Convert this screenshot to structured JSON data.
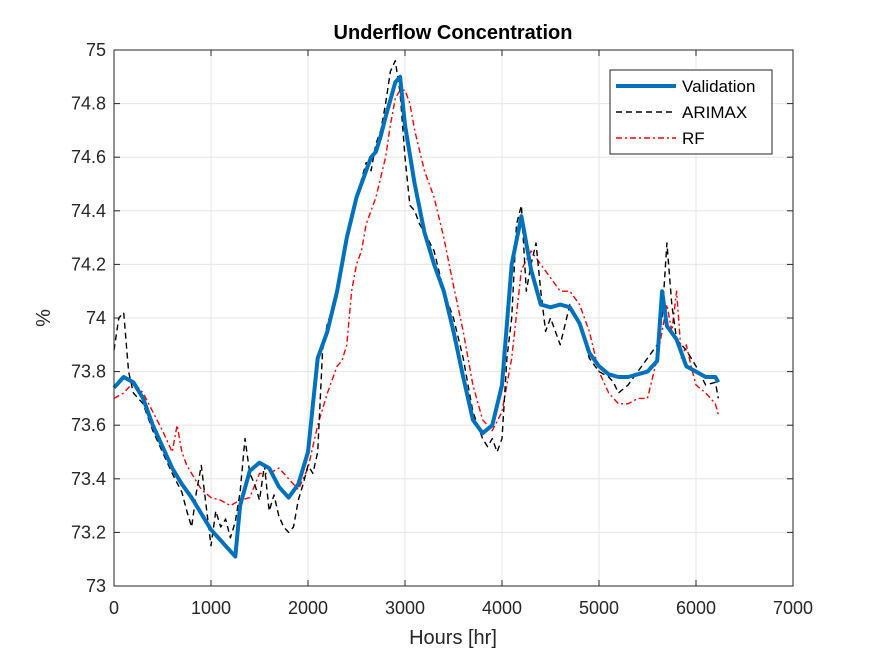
{
  "chart_data": {
    "type": "line",
    "title": "Underflow Concentration",
    "xlabel": "Hours [hr]",
    "ylabel": "%",
    "xlim": [
      0,
      7000
    ],
    "ylim": [
      73,
      75
    ],
    "xticks": [
      0,
      1000,
      2000,
      3000,
      4000,
      5000,
      6000,
      7000
    ],
    "yticks": [
      73,
      73.2,
      73.4,
      73.6,
      73.8,
      74,
      74.2,
      74.4,
      74.6,
      74.8,
      75
    ],
    "xtick_labels": [
      "0",
      "1000",
      "2000",
      "3000",
      "4000",
      "5000",
      "6000",
      "7000"
    ],
    "ytick_labels": [
      "73",
      "73.2",
      "73.4",
      "73.6",
      "73.8",
      "74",
      "74.2",
      "74.4",
      "74.6",
      "74.8",
      "75"
    ],
    "grid": true,
    "legend_position": "top-right",
    "series": [
      {
        "name": "Validation",
        "color": "#0072BD",
        "style": "solid-thick",
        "x": [
          0,
          100,
          200,
          300,
          400,
          500,
          600,
          700,
          800,
          900,
          1000,
          1100,
          1200,
          1250,
          1300,
          1400,
          1500,
          1600,
          1700,
          1800,
          1900,
          2000,
          2100,
          2200,
          2300,
          2400,
          2500,
          2600,
          2650,
          2700,
          2750,
          2800,
          2900,
          2950,
          3000,
          3100,
          3200,
          3300,
          3400,
          3500,
          3600,
          3700,
          3800,
          3900,
          4000,
          4100,
          4200,
          4300,
          4400,
          4500,
          4600,
          4700,
          4800,
          4900,
          5000,
          5100,
          5200,
          5300,
          5400,
          5500,
          5600,
          5650,
          5700,
          5800,
          5900,
          6000,
          6100,
          6200,
          6230
        ],
        "y": [
          73.74,
          73.78,
          73.76,
          73.7,
          73.6,
          73.52,
          73.44,
          73.38,
          73.33,
          73.27,
          73.21,
          73.17,
          73.13,
          73.11,
          73.3,
          73.43,
          73.46,
          73.44,
          73.37,
          73.33,
          73.38,
          73.5,
          73.85,
          73.95,
          74.1,
          74.3,
          74.45,
          74.55,
          74.6,
          74.62,
          74.68,
          74.75,
          74.88,
          74.9,
          74.72,
          74.5,
          74.32,
          74.2,
          74.1,
          73.95,
          73.78,
          73.62,
          73.57,
          73.6,
          73.75,
          74.2,
          74.38,
          74.18,
          74.05,
          74.04,
          74.05,
          74.04,
          73.98,
          73.87,
          73.82,
          73.79,
          73.78,
          73.78,
          73.79,
          73.8,
          73.84,
          74.1,
          73.97,
          73.92,
          73.82,
          73.8,
          73.78,
          73.78,
          73.76
        ]
      },
      {
        "name": "ARIMAX",
        "color": "#000000",
        "style": "dashed",
        "x": [
          0,
          50,
          100,
          150,
          200,
          300,
          400,
          500,
          600,
          700,
          750,
          800,
          850,
          900,
          950,
          1000,
          1050,
          1100,
          1150,
          1200,
          1250,
          1300,
          1350,
          1400,
          1450,
          1500,
          1550,
          1600,
          1650,
          1700,
          1750,
          1800,
          1850,
          1900,
          1950,
          2000,
          2050,
          2100,
          2150,
          2200,
          2300,
          2400,
          2500,
          2600,
          2650,
          2700,
          2750,
          2800,
          2850,
          2900,
          2950,
          3000,
          3050,
          3100,
          3150,
          3200,
          3300,
          3400,
          3500,
          3600,
          3700,
          3800,
          3850,
          3900,
          3950,
          4000,
          4050,
          4100,
          4150,
          4200,
          4250,
          4300,
          4350,
          4400,
          4450,
          4500,
          4600,
          4700,
          4800,
          4900,
          5000,
          5100,
          5150,
          5200,
          5300,
          5400,
          5500,
          5600,
          5650,
          5700,
          5750,
          5800,
          5900,
          6000,
          6100,
          6200,
          6230
        ],
        "y": [
          73.88,
          74.0,
          74.02,
          73.8,
          73.72,
          73.68,
          73.58,
          73.5,
          73.42,
          73.35,
          73.28,
          73.22,
          73.35,
          73.45,
          73.3,
          73.15,
          73.28,
          73.22,
          73.25,
          73.18,
          73.24,
          73.35,
          73.55,
          73.42,
          73.38,
          73.32,
          73.45,
          73.28,
          73.34,
          73.26,
          73.22,
          73.2,
          73.22,
          73.32,
          73.38,
          73.45,
          73.42,
          73.5,
          73.88,
          73.98,
          74.08,
          74.3,
          74.45,
          74.58,
          74.55,
          74.65,
          74.7,
          74.8,
          74.92,
          74.96,
          74.84,
          74.6,
          74.42,
          74.4,
          74.35,
          74.32,
          74.25,
          74.1,
          74.0,
          73.85,
          73.65,
          73.55,
          73.52,
          73.55,
          73.5,
          73.55,
          73.85,
          74.0,
          74.35,
          74.42,
          74.1,
          74.2,
          74.28,
          74.1,
          73.95,
          74.0,
          73.9,
          74.05,
          73.98,
          73.85,
          73.8,
          73.78,
          73.76,
          73.72,
          73.75,
          73.8,
          73.85,
          73.9,
          74.0,
          74.28,
          74.05,
          73.92,
          73.88,
          73.82,
          73.75,
          73.76,
          73.7
        ]
      },
      {
        "name": "RF",
        "color": "#FF0000",
        "style": "dashdot",
        "x": [
          0,
          100,
          200,
          300,
          400,
          500,
          600,
          650,
          700,
          750,
          800,
          900,
          1000,
          1100,
          1200,
          1300,
          1400,
          1500,
          1600,
          1700,
          1800,
          1900,
          2000,
          2100,
          2200,
          2300,
          2350,
          2400,
          2450,
          2500,
          2550,
          2600,
          2700,
          2800,
          2850,
          2900,
          2950,
          3000,
          3050,
          3100,
          3200,
          3300,
          3400,
          3500,
          3600,
          3700,
          3800,
          3900,
          4000,
          4100,
          4200,
          4300,
          4400,
          4500,
          4600,
          4700,
          4800,
          4900,
          5000,
          5100,
          5200,
          5300,
          5400,
          5500,
          5600,
          5700,
          5750,
          5800,
          5850,
          5900,
          5950,
          6000,
          6100,
          6200,
          6230
        ],
        "y": [
          73.7,
          73.72,
          73.76,
          73.72,
          73.65,
          73.58,
          73.5,
          73.6,
          73.5,
          73.45,
          73.42,
          73.36,
          73.33,
          73.32,
          73.3,
          73.32,
          73.33,
          73.42,
          73.42,
          73.44,
          73.4,
          73.36,
          73.44,
          73.6,
          73.72,
          73.82,
          73.84,
          73.9,
          74.1,
          74.2,
          74.25,
          74.35,
          74.45,
          74.6,
          74.72,
          74.82,
          74.85,
          74.85,
          74.8,
          74.7,
          74.55,
          74.45,
          74.3,
          74.12,
          73.95,
          73.75,
          73.62,
          73.58,
          73.65,
          73.85,
          74.18,
          74.25,
          74.2,
          74.15,
          74.1,
          74.1,
          74.05,
          73.95,
          73.8,
          73.72,
          73.68,
          73.68,
          73.7,
          73.7,
          73.85,
          74.05,
          73.95,
          74.1,
          73.85,
          73.9,
          73.82,
          73.75,
          73.72,
          73.68,
          73.64
        ]
      }
    ]
  }
}
